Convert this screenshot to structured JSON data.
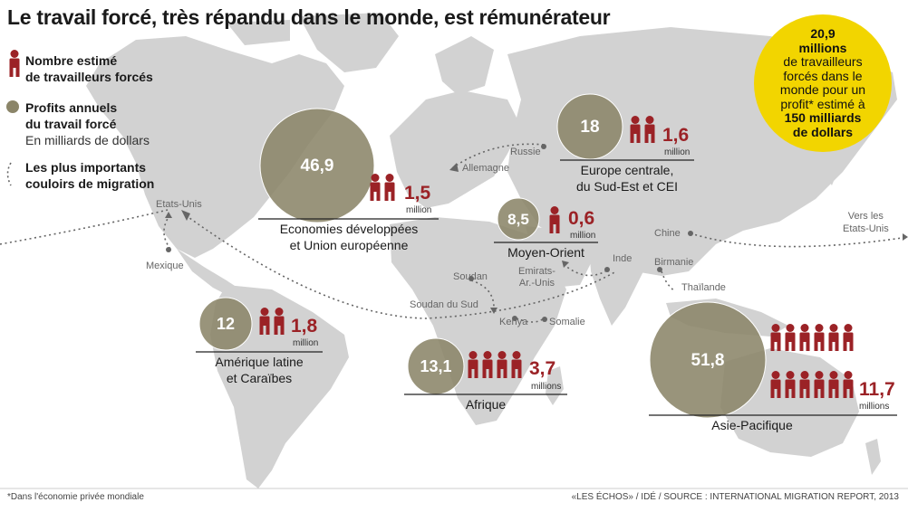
{
  "title": "Le travail forcé, très répandu dans le monde, est rémunérateur",
  "legend": {
    "workers_line1": "Nombre estimé",
    "workers_line2": "de travailleurs forcés",
    "profits_line1": "Profits annuels",
    "profits_line2": "du travail forcé",
    "profits_unit": "En milliards de dollars",
    "corridors_line1": "Les plus importants",
    "corridors_line2": "couloirs de migration"
  },
  "summary_bubble": {
    "line1": "20,9",
    "line2": "millions",
    "line3": "de travailleurs",
    "line4": "forcés dans le",
    "line5": "monde pour un",
    "line6": "profit* estimé à",
    "line7": "150 milliards",
    "line8": "de dollars"
  },
  "regions": [
    {
      "name_line1": "Economies développées",
      "name_line2": "et Union européenne",
      "profit": "46,9",
      "workers": "1,5",
      "workers_unit": "million",
      "icons": 2
    },
    {
      "name_line1": "Europe centrale,",
      "name_line2": "du Sud-Est et CEI",
      "profit": "18",
      "workers": "1,6",
      "workers_unit": "million",
      "icons": 2
    },
    {
      "name_line1": "Moyen-Orient",
      "name_line2": "",
      "profit": "8,5",
      "workers": "0,6",
      "workers_unit": "million",
      "icons": 1
    },
    {
      "name_line1": "Amérique latine",
      "name_line2": "et Caraïbes",
      "profit": "12",
      "workers": "1,8",
      "workers_unit": "million",
      "icons": 2
    },
    {
      "name_line1": "Afrique",
      "name_line2": "",
      "profit": "13,1",
      "workers": "3,7",
      "workers_unit": "millions",
      "icons": 4
    },
    {
      "name_line1": "Asie-Pacifique",
      "name_line2": "",
      "profit": "51,8",
      "workers": "11,7",
      "workers_unit": "millions",
      "icons": 12
    }
  ],
  "places": {
    "russie": "Russie",
    "allemagne": "Allemagne",
    "etats_unis": "Etats-Unis",
    "mexique": "Mexique",
    "soudan": "Soudan",
    "soudan_du_sud": "Soudan du Sud",
    "emirats_line1": "Emirats-",
    "emirats_line2": "Ar.-Unis",
    "inde": "Inde",
    "kenya": "Kenya",
    "somalie": "Somalie",
    "chine": "Chine",
    "birmanie": "Birmanie",
    "thailande": "Thaïlande",
    "vers_line1": "Vers les",
    "vers_line2": "Etats-Unis"
  },
  "footnote": "*Dans l'économie privée mondiale",
  "source": "«LES ÉCHOS» / IDÉ / SOURCE : INTERNATIONAL MIGRATION REPORT, 2013",
  "colors": {
    "land": "#d2d2d2",
    "profit_bubble": "#8b8569",
    "workers_icon": "#9b2226",
    "summary_bubble": "#f2d500"
  }
}
